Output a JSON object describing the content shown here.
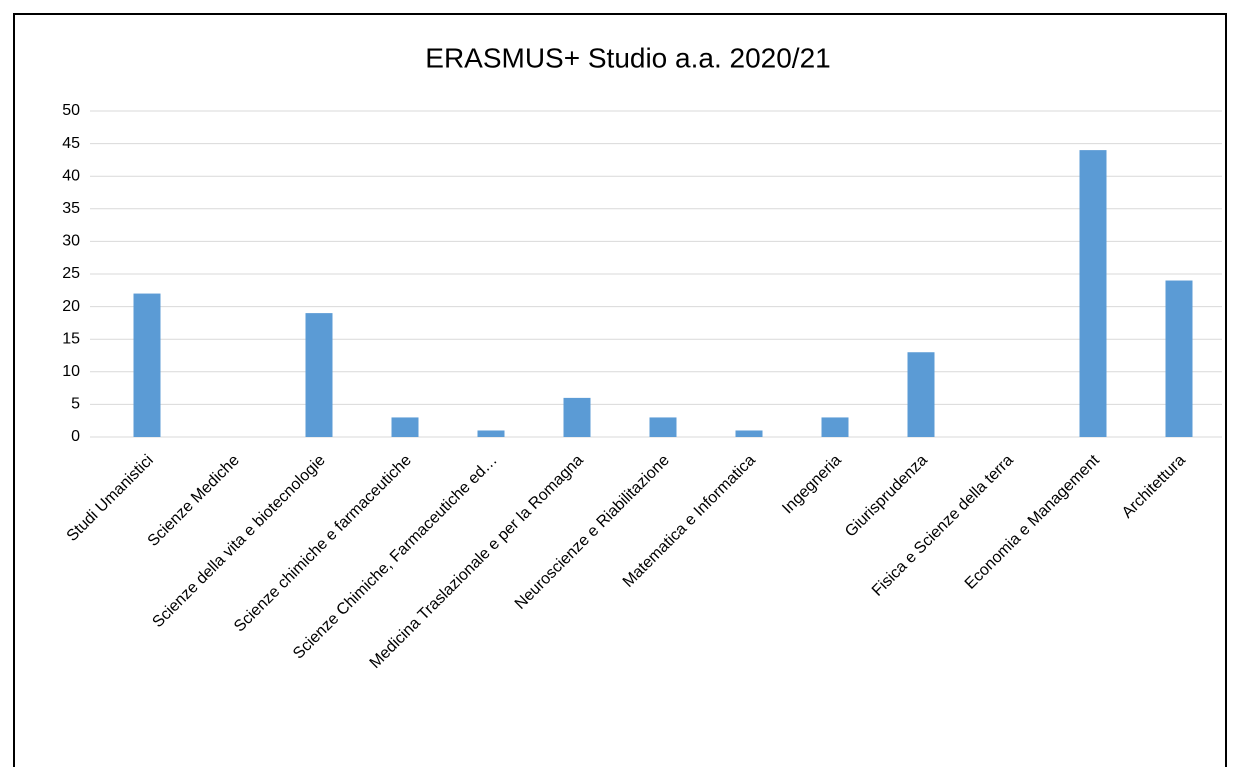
{
  "chart_data": {
    "type": "bar",
    "title": "ERASMUS+ Studio a.a. 2020/21",
    "categories": [
      "Studi Umanistici",
      "Scienze Mediche",
      "Scienze della vita e biotecnologie",
      "Scienze chimiche e farmaceutiche",
      "Scienze Chimiche, Farmaceutiche ed…",
      "Medicina Traslazionale e per la Romagna",
      "Neuroscienze e Riabilitazione",
      "Matematica e Informatica",
      "Ingegneria",
      "Giurisprudenza",
      "Fisica e Scienze della terra",
      "Economia e Management",
      "Architettura"
    ],
    "values": [
      22,
      0,
      19,
      3,
      1,
      6,
      3,
      1,
      3,
      13,
      0,
      44,
      24
    ],
    "color": "#5b9bd5",
    "ylim": [
      0,
      50
    ],
    "yticks": [
      0,
      5,
      10,
      15,
      20,
      25,
      30,
      35,
      40,
      45,
      50
    ],
    "grid": true
  }
}
